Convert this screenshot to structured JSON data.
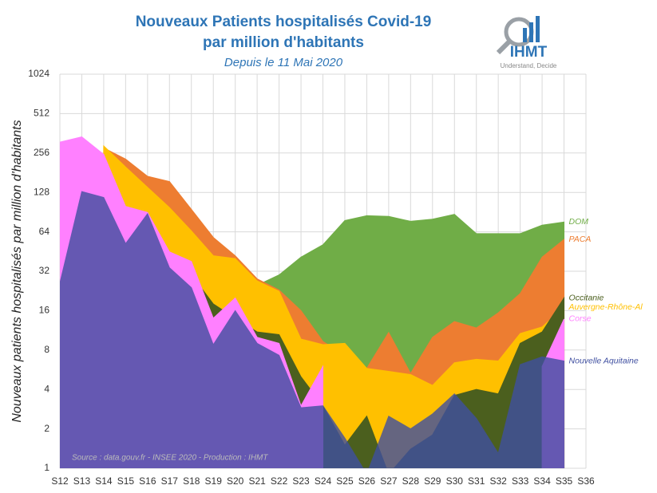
{
  "logo": {
    "name": "IHMT",
    "tagline": "Understand, Decide"
  },
  "chart_data": {
    "type": "area",
    "title": "Nouveaux Patients hospitalisés Covid-19",
    "title_line2": "par million d'habitants",
    "subtitle": "Depuis le 11 Mai 2020",
    "y_label": "Nouveaux patients hospitalisés par million d'habitants",
    "source": "Source : data.gouv.fr - INSEE 2020 - Production : IHMT",
    "log_scale": true,
    "grid": true,
    "categories": [
      "S12",
      "S13",
      "S14",
      "S15",
      "S16",
      "S17",
      "S18",
      "S19",
      "S20",
      "S21",
      "S22",
      "S23",
      "S24",
      "S25",
      "S26",
      "S27",
      "S28",
      "S29",
      "S30",
      "S31",
      "S32",
      "S33",
      "S34",
      "S35",
      "S36"
    ],
    "ylim": [
      1,
      1024
    ],
    "yticks": [
      1,
      2,
      4,
      8,
      16,
      32,
      64,
      128,
      256,
      512,
      1024
    ],
    "series": [
      {
        "name": "DOM",
        "color": "#70ad47",
        "values": [
          null,
          null,
          null,
          null,
          null,
          null,
          null,
          null,
          null,
          25,
          30,
          41,
          51,
          78,
          85,
          84,
          77,
          80,
          87,
          62,
          62,
          62,
          72,
          76,
          null
        ]
      },
      {
        "name": "PACA",
        "color": "#ed7d31",
        "values": [
          null,
          null,
          280,
          230,
          170,
          155,
          95,
          58,
          42,
          28,
          23,
          16,
          9.3,
          7.3,
          5.8,
          10.9,
          5.3,
          10,
          13.2,
          11.8,
          15.4,
          21.6,
          41,
          56,
          null
        ]
      },
      {
        "name": "Auvergne-Rhône-Al",
        "color": "#ffc000",
        "values": [
          null,
          null,
          290,
          200,
          140,
          98,
          65,
          42,
          40,
          27,
          22.5,
          9.7,
          8.8,
          9,
          5.8,
          5.5,
          5.2,
          4.3,
          6.4,
          6.8,
          6.6,
          10.7,
          12,
          17,
          null
        ]
      },
      {
        "name": "Occitanie",
        "color": "#4b5f1e",
        "values": [
          null,
          null,
          null,
          92,
          65,
          44,
          30,
          18,
          14,
          11,
          10.5,
          5,
          3,
          1.5,
          2.5,
          0.9,
          1.4,
          1.8,
          3.6,
          4,
          3.7,
          9,
          11,
          20,
          null
        ]
      },
      {
        "name": "Corse",
        "color": "#ff80ff",
        "values": [
          310,
          340,
          250,
          100,
          90,
          45,
          38,
          14,
          20,
          10,
          9,
          3,
          6,
          null,
          null,
          null,
          null,
          null,
          null,
          null,
          null,
          null,
          6,
          13.8,
          null
        ]
      },
      {
        "name": "Nouvelle Aquitaine",
        "color": "#3f4fa0",
        "values": [
          26,
          130,
          117,
          52,
          88,
          34,
          24,
          8.8,
          16,
          9,
          7.3,
          2.9,
          3,
          1.7,
          0.9,
          2.5,
          2,
          2.6,
          3.7,
          2.4,
          1.3,
          6.2,
          7.1,
          6.6,
          null
        ]
      }
    ]
  }
}
